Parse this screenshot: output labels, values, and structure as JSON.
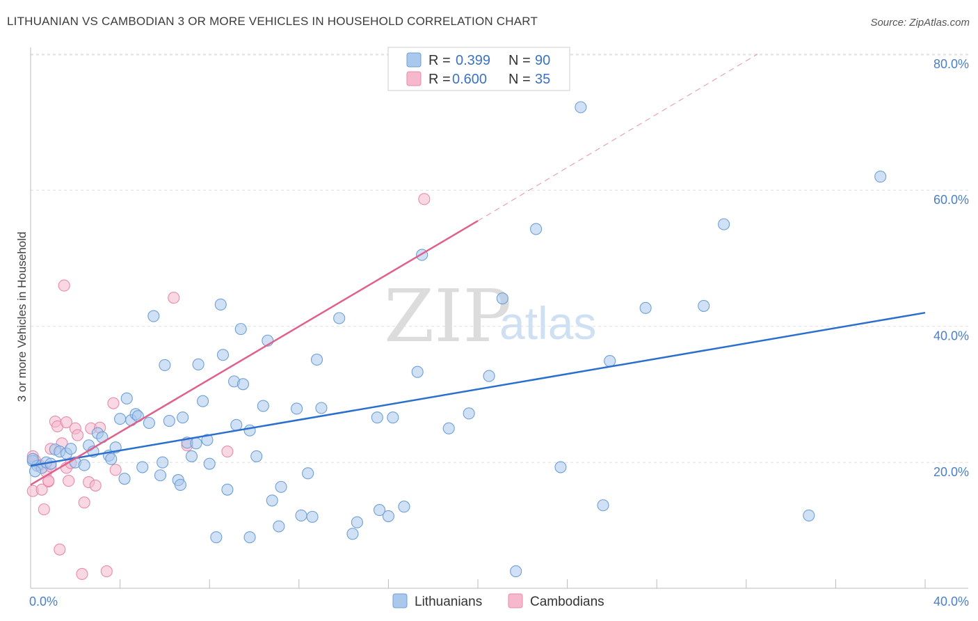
{
  "title": "LITHUANIAN VS CAMBODIAN 3 OR MORE VEHICLES IN HOUSEHOLD CORRELATION CHART",
  "source": "Source: ZipAtlas.com",
  "watermark": {
    "part1": "ZIP",
    "part2": "atlas"
  },
  "colors": {
    "blue_fill": "#a9c8ec",
    "blue_stroke": "#6d9fd6",
    "blue_line": "#2a6fce",
    "pink_fill": "#f5b8cc",
    "pink_stroke": "#e88aab",
    "pink_line": "#e0608a",
    "grid": "#dddddd",
    "axis_text": "#4a7fc8"
  },
  "legend": {
    "rows": [
      {
        "r_label": "R =",
        "r_value": "0.399",
        "n_label": "N =",
        "n_value": "90"
      },
      {
        "r_label": "R =",
        "r_value": "0.600",
        "n_label": "N =",
        "n_value": "35"
      }
    ]
  },
  "bottom_legend": {
    "series1": "Lithuanians",
    "series2": "Cambodians"
  },
  "chart_data": {
    "type": "scatter",
    "title": "LITHUANIAN VS CAMBODIAN 3 OR MORE VEHICLES IN HOUSEHOLD CORRELATION CHART",
    "xlabel": "",
    "ylabel": "3 or more Vehicles in Household",
    "xlim": [
      0,
      40
    ],
    "ylim": [
      1.5,
      81
    ],
    "x_tick_labels": [
      "0.0%",
      "40.0%"
    ],
    "y_ticks": [
      20,
      40,
      60,
      80
    ],
    "y_tick_labels": [
      "20.0%",
      "40.0%",
      "60.0%",
      "80.0%"
    ],
    "grid": true,
    "series": [
      {
        "name": "Lithuanians",
        "R": 0.399,
        "N": 90,
        "trend": {
          "x0": 0,
          "y0": 19.5,
          "x1": 40,
          "y1": 42
        },
        "points": [
          [
            0.1,
            20.2
          ],
          [
            0.3,
            19.5
          ],
          [
            0.5,
            19.2
          ],
          [
            0.7,
            20.0
          ],
          [
            0.9,
            19.8
          ],
          [
            1.1,
            21.9
          ],
          [
            1.3,
            21.6
          ],
          [
            1.6,
            21.3
          ],
          [
            1.8,
            22.0
          ],
          [
            2.0,
            20.0
          ],
          [
            2.4,
            19.6
          ],
          [
            2.6,
            22.5
          ],
          [
            2.8,
            21.6
          ],
          [
            3.0,
            24.3
          ],
          [
            3.2,
            23.7
          ],
          [
            3.5,
            21.0
          ],
          [
            3.6,
            20.5
          ],
          [
            3.8,
            22.2
          ],
          [
            4.0,
            26.4
          ],
          [
            4.2,
            17.6
          ],
          [
            4.3,
            29.4
          ],
          [
            4.5,
            26.2
          ],
          [
            4.7,
            27.1
          ],
          [
            4.8,
            26.8
          ],
          [
            5.0,
            19.3
          ],
          [
            5.3,
            25.8
          ],
          [
            5.5,
            41.5
          ],
          [
            5.8,
            18.1
          ],
          [
            5.9,
            20.0
          ],
          [
            6.0,
            34.3
          ],
          [
            6.2,
            26.1
          ],
          [
            6.6,
            17.4
          ],
          [
            6.7,
            16.7
          ],
          [
            6.8,
            26.6
          ],
          [
            7.0,
            22.9
          ],
          [
            7.2,
            20.9
          ],
          [
            7.4,
            22.8
          ],
          [
            7.5,
            34.4
          ],
          [
            7.7,
            29.0
          ],
          [
            7.9,
            23.3
          ],
          [
            8.0,
            19.8
          ],
          [
            8.3,
            9.0
          ],
          [
            8.5,
            43.2
          ],
          [
            8.6,
            35.8
          ],
          [
            8.8,
            16.0
          ],
          [
            9.1,
            31.9
          ],
          [
            9.2,
            25.5
          ],
          [
            9.4,
            39.6
          ],
          [
            9.5,
            31.5
          ],
          [
            9.8,
            24.7
          ],
          [
            9.8,
            9.0
          ],
          [
            10.1,
            20.9
          ],
          [
            10.4,
            28.3
          ],
          [
            10.6,
            37.9
          ],
          [
            10.8,
            14.4
          ],
          [
            11.1,
            10.6
          ],
          [
            11.2,
            16.4
          ],
          [
            11.9,
            27.9
          ],
          [
            12.1,
            12.2
          ],
          [
            12.4,
            18.4
          ],
          [
            12.6,
            12.0
          ],
          [
            12.8,
            35.1
          ],
          [
            13.0,
            28.0
          ],
          [
            13.8,
            41.2
          ],
          [
            14.4,
            9.5
          ],
          [
            14.6,
            11.2
          ],
          [
            15.5,
            26.6
          ],
          [
            15.6,
            13.0
          ],
          [
            16.0,
            12.1
          ],
          [
            16.2,
            26.6
          ],
          [
            16.7,
            13.5
          ],
          [
            17.3,
            33.3
          ],
          [
            17.5,
            50.5
          ],
          [
            18.7,
            25.0
          ],
          [
            19.6,
            27.2
          ],
          [
            20.5,
            32.7
          ],
          [
            21.1,
            44.1
          ],
          [
            21.7,
            4.0
          ],
          [
            22.6,
            54.3
          ],
          [
            23.7,
            19.3
          ],
          [
            24.6,
            72.2
          ],
          [
            25.6,
            13.7
          ],
          [
            25.9,
            34.9
          ],
          [
            27.5,
            42.7
          ],
          [
            30.1,
            43.0
          ],
          [
            31.0,
            55.0
          ],
          [
            34.8,
            12.2
          ],
          [
            38.0,
            62.0
          ],
          [
            0.1,
            20.5
          ],
          [
            0.2,
            18.7
          ]
        ]
      },
      {
        "name": "Cambodians",
        "R": 0.6,
        "N": 35,
        "trend": {
          "x0": 0,
          "y0": 16.7,
          "x1": 20,
          "y1": 55.5,
          "dash_to": {
            "x": 32.5,
            "y": 80
          }
        },
        "points": [
          [
            0.1,
            15.8
          ],
          [
            0.2,
            20.3
          ],
          [
            0.4,
            19.6
          ],
          [
            0.5,
            16.0
          ],
          [
            0.6,
            13.1
          ],
          [
            0.7,
            18.6
          ],
          [
            0.8,
            17.2
          ],
          [
            0.8,
            17.3
          ],
          [
            0.9,
            19.4
          ],
          [
            0.9,
            22.0
          ],
          [
            1.1,
            26.0
          ],
          [
            1.2,
            25.3
          ],
          [
            1.3,
            7.2
          ],
          [
            1.4,
            22.8
          ],
          [
            1.5,
            46.0
          ],
          [
            1.6,
            19.2
          ],
          [
            1.6,
            25.9
          ],
          [
            1.7,
            17.3
          ],
          [
            1.8,
            19.9
          ],
          [
            2.0,
            25.0
          ],
          [
            2.1,
            24.0
          ],
          [
            2.3,
            3.6
          ],
          [
            2.4,
            14.1
          ],
          [
            2.6,
            17.1
          ],
          [
            2.7,
            25.0
          ],
          [
            2.9,
            16.6
          ],
          [
            3.1,
            25.1
          ],
          [
            3.4,
            4.0
          ],
          [
            3.7,
            28.7
          ],
          [
            3.8,
            18.9
          ],
          [
            6.4,
            44.2
          ],
          [
            7.0,
            22.5
          ],
          [
            8.8,
            21.6
          ],
          [
            17.6,
            58.7
          ],
          [
            0.1,
            20.9
          ]
        ]
      }
    ]
  }
}
